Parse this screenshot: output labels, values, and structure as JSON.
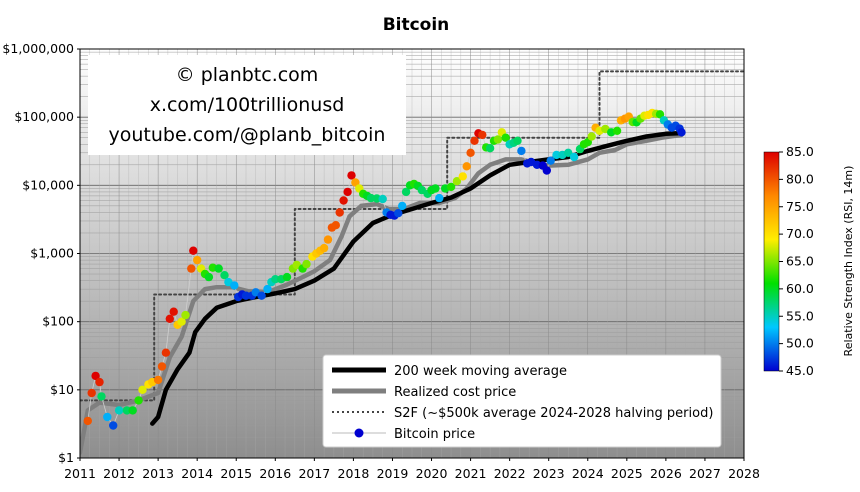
{
  "chart_data": {
    "type": "scatter",
    "title": "Bitcoin",
    "y_scale": "log",
    "ylim": [
      1,
      1000000
    ],
    "xlim": [
      2011,
      2028
    ],
    "y_ticks": [
      {
        "value": 1,
        "label": "$1"
      },
      {
        "value": 10,
        "label": "$10"
      },
      {
        "value": 100,
        "label": "$100"
      },
      {
        "value": 1000,
        "label": "$1,000"
      },
      {
        "value": 10000,
        "label": "$10,000"
      },
      {
        "value": 100000,
        "label": "$100,000"
      },
      {
        "value": 1000000,
        "label": "$1,000,000"
      }
    ],
    "x_ticks": [
      "2011",
      "2012",
      "2013",
      "2014",
      "2015",
      "2016",
      "2017",
      "2018",
      "2019",
      "2020",
      "2021",
      "2022",
      "2023",
      "2024",
      "2025",
      "2026",
      "2027",
      "2028"
    ],
    "grid": true,
    "watermark": [
      "© planbtc.com",
      "x.com/100trillionusd",
      "youtube.com/@planb_bitcoin"
    ],
    "colorbar": {
      "label": "Relative Strength Index (RSI, 14m)",
      "min": 45,
      "max": 85,
      "ticks": [
        "45.0",
        "50.0",
        "55.0",
        "60.0",
        "65.0",
        "70.0",
        "75.0",
        "80.0",
        "85.0"
      ]
    },
    "legend": {
      "position": "bottom-right",
      "entries": [
        "200 week moving average",
        "Realized cost price",
        "S2F (~$500k average 2024-2028 halving period)",
        "Bitcoin price"
      ]
    },
    "series": [
      {
        "name": "S2F (~$500k average 2024-2028 halving period)",
        "style": "dotted",
        "color": "#444444",
        "points": [
          [
            2011.0,
            7
          ],
          [
            2012.9,
            7
          ],
          [
            2012.9,
            250
          ],
          [
            2016.5,
            250
          ],
          [
            2016.5,
            4500
          ],
          [
            2020.4,
            4500
          ],
          [
            2020.4,
            50000
          ],
          [
            2024.3,
            50000
          ],
          [
            2024.3,
            470000
          ],
          [
            2028.0,
            470000
          ]
        ]
      },
      {
        "name": "Realized cost price",
        "style": "line",
        "color": "#7f7f7f",
        "points": [
          [
            2011.0,
            1.2
          ],
          [
            2011.2,
            5
          ],
          [
            2011.5,
            6.5
          ],
          [
            2012.0,
            6
          ],
          [
            2012.5,
            7
          ],
          [
            2013.0,
            9
          ],
          [
            2013.3,
            30
          ],
          [
            2013.6,
            60
          ],
          [
            2013.9,
            200
          ],
          [
            2014.2,
            300
          ],
          [
            2014.5,
            320
          ],
          [
            2014.9,
            320
          ],
          [
            2015.3,
            280
          ],
          [
            2015.8,
            270
          ],
          [
            2016.3,
            350
          ],
          [
            2016.7,
            450
          ],
          [
            2017.0,
            550
          ],
          [
            2017.4,
            800
          ],
          [
            2017.7,
            1800
          ],
          [
            2017.9,
            3500
          ],
          [
            2018.2,
            5000
          ],
          [
            2018.6,
            5300
          ],
          [
            2018.9,
            4500
          ],
          [
            2019.3,
            4500
          ],
          [
            2019.7,
            5500
          ],
          [
            2020.2,
            5500
          ],
          [
            2020.6,
            6500
          ],
          [
            2020.9,
            9000
          ],
          [
            2021.2,
            15000
          ],
          [
            2021.5,
            20000
          ],
          [
            2021.9,
            24000
          ],
          [
            2022.3,
            24000
          ],
          [
            2022.7,
            21000
          ],
          [
            2023.0,
            19500
          ],
          [
            2023.5,
            20000
          ],
          [
            2024.0,
            24000
          ],
          [
            2024.3,
            30000
          ],
          [
            2024.7,
            33000
          ],
          [
            2025.0,
            40000
          ],
          [
            2025.5,
            45000
          ],
          [
            2025.9,
            50000
          ],
          [
            2026.4,
            55000
          ]
        ]
      },
      {
        "name": "200 week moving average",
        "style": "line",
        "color": "#000000",
        "points": [
          [
            2012.85,
            3.2
          ],
          [
            2013.0,
            4
          ],
          [
            2013.2,
            10
          ],
          [
            2013.5,
            20
          ],
          [
            2013.8,
            35
          ],
          [
            2013.95,
            70
          ],
          [
            2014.2,
            110
          ],
          [
            2014.5,
            160
          ],
          [
            2015.0,
            200
          ],
          [
            2015.5,
            230
          ],
          [
            2016.0,
            260
          ],
          [
            2016.5,
            300
          ],
          [
            2017.0,
            400
          ],
          [
            2017.5,
            600
          ],
          [
            2018.0,
            1500
          ],
          [
            2018.5,
            2800
          ],
          [
            2019.0,
            3700
          ],
          [
            2019.5,
            4500
          ],
          [
            2020.0,
            5500
          ],
          [
            2020.5,
            6600
          ],
          [
            2021.0,
            9000
          ],
          [
            2021.5,
            14000
          ],
          [
            2022.0,
            20000
          ],
          [
            2022.5,
            22000
          ],
          [
            2023.0,
            24000
          ],
          [
            2023.5,
            26000
          ],
          [
            2024.0,
            32000
          ],
          [
            2024.5,
            38000
          ],
          [
            2025.0,
            45000
          ],
          [
            2025.5,
            52000
          ],
          [
            2026.0,
            57000
          ],
          [
            2026.3,
            58000
          ]
        ]
      }
    ],
    "price_points": [
      [
        2011.2,
        3.5,
        80
      ],
      [
        2011.3,
        9,
        82
      ],
      [
        2011.4,
        16,
        85
      ],
      [
        2011.5,
        13,
        83
      ],
      [
        2011.55,
        8,
        58
      ],
      [
        2011.7,
        4,
        52
      ],
      [
        2011.85,
        3,
        48
      ],
      [
        2012.0,
        5,
        55
      ],
      [
        2012.2,
        5,
        58
      ],
      [
        2012.35,
        5,
        60
      ],
      [
        2012.5,
        7,
        62
      ],
      [
        2012.6,
        10,
        68
      ],
      [
        2012.75,
        12,
        70
      ],
      [
        2012.85,
        13,
        72
      ],
      [
        2013.0,
        14,
        78
      ],
      [
        2013.1,
        22,
        80
      ],
      [
        2013.2,
        35,
        82
      ],
      [
        2013.3,
        110,
        84
      ],
      [
        2013.4,
        140,
        84
      ],
      [
        2013.5,
        90,
        72
      ],
      [
        2013.6,
        100,
        68
      ],
      [
        2013.7,
        125,
        66
      ],
      [
        2013.85,
        600,
        80
      ],
      [
        2013.9,
        1100,
        85
      ],
      [
        2014.0,
        800,
        75
      ],
      [
        2014.1,
        600,
        68
      ],
      [
        2014.2,
        500,
        62
      ],
      [
        2014.3,
        450,
        60
      ],
      [
        2014.4,
        620,
        62
      ],
      [
        2014.55,
        600,
        60
      ],
      [
        2014.7,
        480,
        58
      ],
      [
        2014.8,
        380,
        54
      ],
      [
        2014.95,
        340,
        52
      ],
      [
        2015.05,
        230,
        47
      ],
      [
        2015.15,
        250,
        46
      ],
      [
        2015.25,
        240,
        47
      ],
      [
        2015.4,
        240,
        47
      ],
      [
        2015.5,
        270,
        50
      ],
      [
        2015.65,
        240,
        48
      ],
      [
        2015.8,
        300,
        52
      ],
      [
        2015.9,
        380,
        55
      ],
      [
        2016.0,
        420,
        57
      ],
      [
        2016.15,
        420,
        58
      ],
      [
        2016.3,
        450,
        60
      ],
      [
        2016.45,
        600,
        65
      ],
      [
        2016.55,
        680,
        66
      ],
      [
        2016.7,
        600,
        62
      ],
      [
        2016.8,
        700,
        65
      ],
      [
        2016.95,
        900,
        70
      ],
      [
        2017.05,
        1000,
        72
      ],
      [
        2017.15,
        1100,
        73
      ],
      [
        2017.25,
        1200,
        74
      ],
      [
        2017.35,
        1600,
        76
      ],
      [
        2017.45,
        2400,
        80
      ],
      [
        2017.55,
        2600,
        80
      ],
      [
        2017.65,
        4000,
        82
      ],
      [
        2017.75,
        6000,
        84
      ],
      [
        2017.85,
        8000,
        85
      ],
      [
        2017.95,
        14000,
        85
      ],
      [
        2018.05,
        11000,
        75
      ],
      [
        2018.15,
        9000,
        68
      ],
      [
        2018.25,
        7500,
        62
      ],
      [
        2018.35,
        7000,
        60
      ],
      [
        2018.45,
        6500,
        58
      ],
      [
        2018.6,
        6400,
        58
      ],
      [
        2018.75,
        6300,
        55
      ],
      [
        2018.85,
        4000,
        50
      ],
      [
        2018.95,
        3700,
        46
      ],
      [
        2019.05,
        3600,
        46
      ],
      [
        2019.15,
        3900,
        48
      ],
      [
        2019.25,
        5000,
        52
      ],
      [
        2019.35,
        8000,
        58
      ],
      [
        2019.45,
        10000,
        60
      ],
      [
        2019.55,
        10500,
        62
      ],
      [
        2019.65,
        9800,
        60
      ],
      [
        2019.75,
        8500,
        58
      ],
      [
        2019.9,
        7500,
        58
      ],
      [
        2020.0,
        8500,
        60
      ],
      [
        2020.1,
        9000,
        60
      ],
      [
        2020.2,
        6500,
        52
      ],
      [
        2020.35,
        9000,
        60
      ],
      [
        2020.5,
        9500,
        62
      ],
      [
        2020.65,
        11500,
        66
      ],
      [
        2020.8,
        13500,
        70
      ],
      [
        2020.9,
        19000,
        76
      ],
      [
        2021.0,
        30000,
        80
      ],
      [
        2021.1,
        45000,
        82
      ],
      [
        2021.2,
        58000,
        85
      ],
      [
        2021.3,
        55000,
        82
      ],
      [
        2021.4,
        36000,
        62
      ],
      [
        2021.5,
        35000,
        58
      ],
      [
        2021.6,
        45000,
        62
      ],
      [
        2021.7,
        47000,
        65
      ],
      [
        2021.8,
        60000,
        68
      ],
      [
        2021.9,
        50000,
        62
      ],
      [
        2022.0,
        40000,
        55
      ],
      [
        2022.1,
        42000,
        57
      ],
      [
        2022.2,
        45000,
        58
      ],
      [
        2022.3,
        32000,
        50
      ],
      [
        2022.45,
        21000,
        46
      ],
      [
        2022.55,
        22000,
        46
      ],
      [
        2022.7,
        20000,
        46
      ],
      [
        2022.85,
        19500,
        45
      ],
      [
        2022.95,
        16500,
        45
      ],
      [
        2023.05,
        23000,
        50
      ],
      [
        2023.2,
        28000,
        54
      ],
      [
        2023.35,
        28000,
        55
      ],
      [
        2023.5,
        30000,
        56
      ],
      [
        2023.65,
        26000,
        54
      ],
      [
        2023.8,
        34000,
        58
      ],
      [
        2023.9,
        40000,
        62
      ],
      [
        2024.0,
        43000,
        62
      ],
      [
        2024.1,
        52000,
        66
      ],
      [
        2024.2,
        70000,
        74
      ],
      [
        2024.3,
        63000,
        68
      ],
      [
        2024.45,
        67000,
        66
      ],
      [
        2024.6,
        60000,
        60
      ],
      [
        2024.75,
        63000,
        62
      ],
      [
        2024.85,
        90000,
        74
      ],
      [
        2024.95,
        95000,
        76
      ],
      [
        2025.05,
        102000,
        75
      ],
      [
        2025.15,
        85000,
        64
      ],
      [
        2025.25,
        84000,
        60
      ],
      [
        2025.35,
        95000,
        64
      ],
      [
        2025.45,
        105000,
        68
      ],
      [
        2025.55,
        108000,
        70
      ],
      [
        2025.65,
        115000,
        70
      ],
      [
        2025.75,
        112000,
        66
      ],
      [
        2025.85,
        110000,
        62
      ],
      [
        2025.95,
        90000,
        55
      ],
      [
        2026.05,
        78000,
        50
      ],
      [
        2026.15,
        70000,
        48
      ],
      [
        2026.25,
        75000,
        48
      ],
      [
        2026.35,
        68000,
        47
      ],
      [
        2026.4,
        60000,
        46
      ]
    ]
  }
}
